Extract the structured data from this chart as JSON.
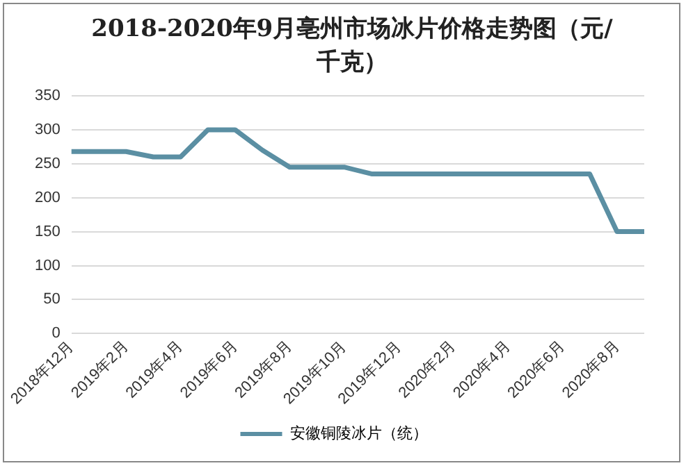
{
  "chart_data": {
    "type": "line",
    "title": "2018-2020年9月亳州市场冰片价格走势图（元/千克）",
    "categories": [
      "2018年12月",
      null,
      "2019年2月",
      null,
      "2019年4月",
      null,
      "2019年6月",
      null,
      "2019年8月",
      null,
      "2019年10月",
      null,
      "2019年12月",
      null,
      "2020年2月",
      null,
      "2020年4月",
      null,
      "2020年6月",
      null,
      "2020年8月",
      null
    ],
    "series": [
      {
        "name": "安徽铜陵冰片（统）",
        "color": "#5b8fa3",
        "values": [
          268,
          268,
          268,
          260,
          260,
          300,
          300,
          270,
          245,
          245,
          245,
          235,
          235,
          235,
          235,
          235,
          235,
          235,
          235,
          235,
          150,
          150
        ]
      }
    ],
    "ylim": [
      0,
      350
    ],
    "yticks": [
      0,
      50,
      100,
      150,
      200,
      250,
      300,
      350
    ],
    "grid": "y",
    "legend": "bottom",
    "marker": "none",
    "line_style": "solid"
  }
}
